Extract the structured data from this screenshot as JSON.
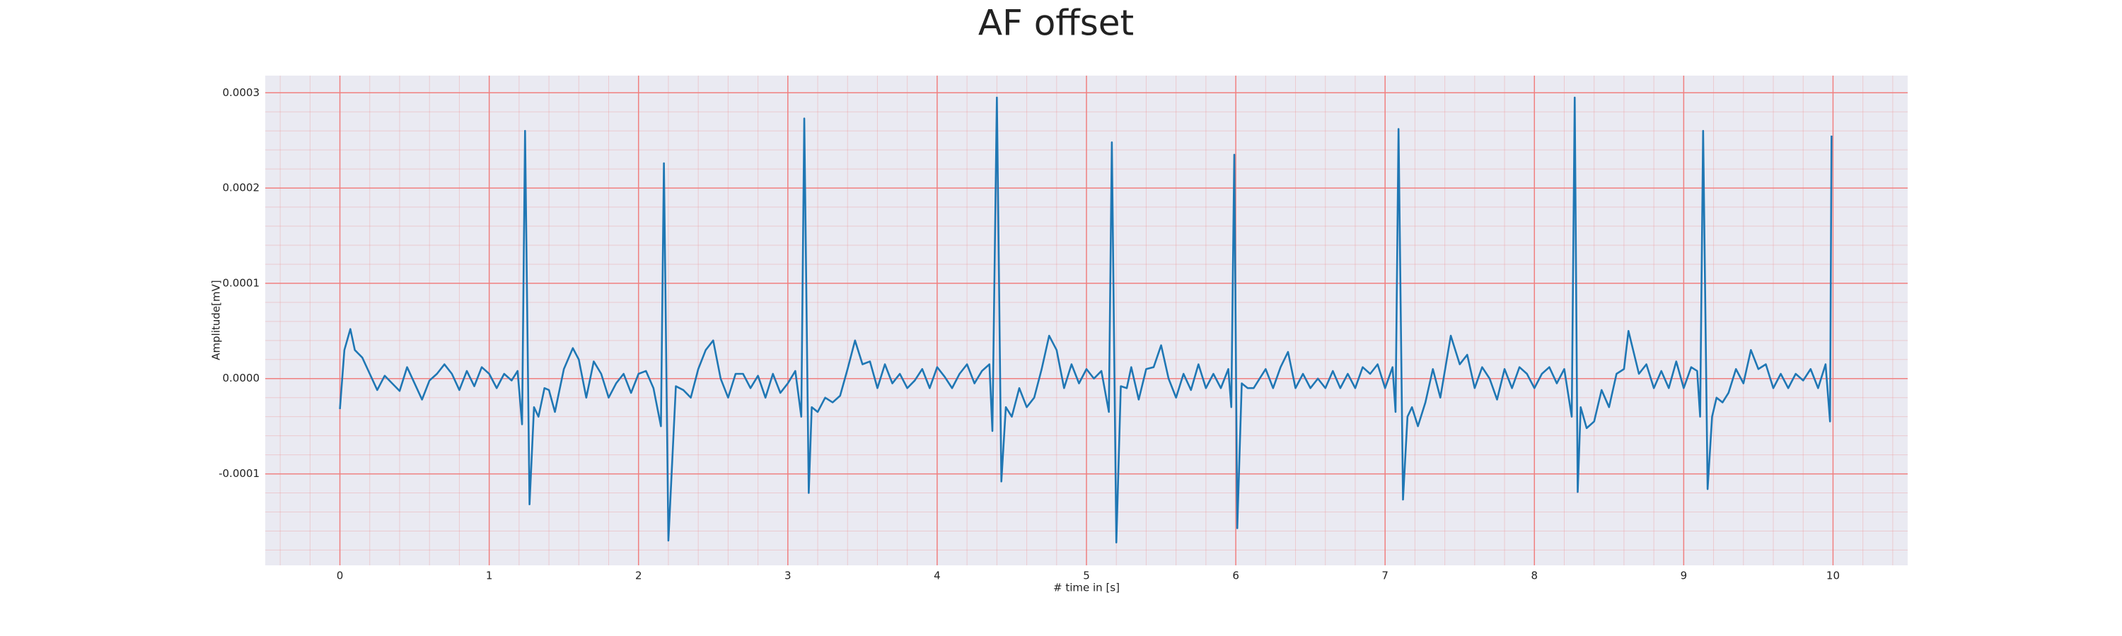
{
  "chart_data": {
    "type": "line",
    "title": "AF offset",
    "xlabel": "# time in [s]",
    "ylabel": "Amplitude[mV]",
    "color": "#1f77b4",
    "background": "#eaeaf2",
    "grid": true,
    "grid_color": "#f08080",
    "minor_grid": true,
    "xlim": [
      -0.5,
      10.5
    ],
    "ylim": [
      -0.000196,
      0.000318
    ],
    "xticks": [
      0,
      1,
      2,
      3,
      4,
      5,
      6,
      7,
      8,
      9,
      10
    ],
    "yticks": [
      -0.0001,
      {
        "value": 0,
        "label": "0.0000"
      },
      0.0001,
      0.0002,
      0.0003
    ],
    "x": [
      0,
      0.03,
      0.07,
      0.1,
      0.15,
      0.2,
      0.25,
      0.3,
      0.35,
      0.4,
      0.45,
      0.5,
      0.55,
      0.6,
      0.65,
      0.7,
      0.75,
      0.8,
      0.85,
      0.9,
      0.95,
      1.0,
      1.05,
      1.1,
      1.15,
      1.19,
      1.22,
      1.24,
      1.27,
      1.3,
      1.33,
      1.37,
      1.4,
      1.44,
      1.5,
      1.56,
      1.6,
      1.65,
      1.7,
      1.75,
      1.8,
      1.85,
      1.9,
      1.95,
      2.0,
      2.05,
      2.1,
      2.15,
      2.17,
      2.2,
      2.25,
      2.3,
      2.35,
      2.4,
      2.45,
      2.5,
      2.55,
      2.6,
      2.65,
      2.7,
      2.75,
      2.8,
      2.85,
      2.9,
      2.95,
      3.0,
      3.05,
      3.09,
      3.11,
      3.14,
      3.16,
      3.2,
      3.25,
      3.3,
      3.35,
      3.4,
      3.45,
      3.5,
      3.55,
      3.6,
      3.65,
      3.7,
      3.75,
      3.8,
      3.85,
      3.9,
      3.95,
      4.0,
      4.05,
      4.1,
      4.15,
      4.2,
      4.25,
      4.3,
      4.35,
      4.37,
      4.4,
      4.43,
      4.46,
      4.5,
      4.55,
      4.6,
      4.65,
      4.7,
      4.75,
      4.8,
      4.85,
      4.9,
      4.95,
      5.0,
      5.05,
      5.1,
      5.15,
      5.17,
      5.2,
      5.23,
      5.27,
      5.3,
      5.35,
      5.4,
      5.45,
      5.5,
      5.55,
      5.6,
      5.65,
      5.7,
      5.75,
      5.8,
      5.85,
      5.9,
      5.95,
      5.97,
      5.99,
      6.01,
      6.04,
      6.08,
      6.12,
      6.16,
      6.2,
      6.25,
      6.3,
      6.35,
      6.4,
      6.45,
      6.5,
      6.55,
      6.6,
      6.65,
      6.7,
      6.75,
      6.8,
      6.85,
      6.9,
      6.95,
      7.0,
      7.05,
      7.07,
      7.09,
      7.12,
      7.15,
      7.18,
      7.22,
      7.27,
      7.32,
      7.37,
      7.44,
      7.5,
      7.55,
      7.6,
      7.65,
      7.7,
      7.75,
      7.8,
      7.85,
      7.9,
      7.95,
      8.0,
      8.05,
      8.1,
      8.15,
      8.2,
      8.25,
      8.27,
      8.29,
      8.31,
      8.35,
      8.4,
      8.45,
      8.5,
      8.55,
      8.6,
      8.63,
      8.7,
      8.75,
      8.8,
      8.85,
      8.9,
      8.95,
      9.0,
      9.05,
      9.09,
      9.11,
      9.13,
      9.16,
      9.19,
      9.22,
      9.26,
      9.3,
      9.35,
      9.4,
      9.45,
      9.5,
      9.55,
      9.6,
      9.65,
      9.7,
      9.75,
      9.8,
      9.85,
      9.9,
      9.95,
      9.98,
      9.99
    ],
    "values": [
      -3.2e-05,
      3e-05,
      5.2e-05,
      3e-05,
      2.2e-05,
      5e-06,
      -1.2e-05,
      3e-06,
      -5e-06,
      -1.3e-05,
      1.2e-05,
      -5e-06,
      -2.2e-05,
      -2e-06,
      5e-06,
      1.5e-05,
      5e-06,
      -1.2e-05,
      8e-06,
      -8e-06,
      1.2e-05,
      5e-06,
      -1e-05,
      5e-06,
      -2e-06,
      8e-06,
      -4.8e-05,
      0.00026,
      -0.000132,
      -3e-05,
      -4e-05,
      -1e-05,
      -1.2e-05,
      -3.5e-05,
      1e-05,
      3.2e-05,
      2e-05,
      -2e-05,
      1.8e-05,
      5e-06,
      -2e-05,
      -5e-06,
      5e-06,
      -1.5e-05,
      5e-06,
      8e-06,
      -1e-05,
      -5e-05,
      0.000226,
      -0.00017,
      -8e-06,
      -1.2e-05,
      -2e-05,
      1e-05,
      3e-05,
      4e-05,
      0.0,
      -2e-05,
      5e-06,
      5e-06,
      -1e-05,
      3e-06,
      -2e-05,
      5e-06,
      -1.5e-05,
      -5e-06,
      8e-06,
      -4e-05,
      0.000273,
      -0.00012,
      -3e-05,
      -3.5e-05,
      -2e-05,
      -2.5e-05,
      -1.8e-05,
      1e-05,
      4e-05,
      1.5e-05,
      1.8e-05,
      -1e-05,
      1.5e-05,
      -5e-06,
      5e-06,
      -1e-05,
      -2e-06,
      1e-05,
      -1e-05,
      1.2e-05,
      2e-06,
      -1e-05,
      5e-06,
      1.5e-05,
      -5e-06,
      8e-06,
      1.5e-05,
      -5.5e-05,
      0.000295,
      -0.000108,
      -3e-05,
      -4e-05,
      -1e-05,
      -3e-05,
      -2e-05,
      1e-05,
      4.5e-05,
      3e-05,
      -1e-05,
      1.5e-05,
      -5e-06,
      1e-05,
      0.0,
      8e-06,
      -3.5e-05,
      0.000248,
      -0.000172,
      -8e-06,
      -1e-05,
      1.2e-05,
      -2.2e-05,
      1e-05,
      1.2e-05,
      3.5e-05,
      0.0,
      -2e-05,
      5e-06,
      -1.2e-05,
      1.5e-05,
      -1e-05,
      5e-06,
      -1e-05,
      1e-05,
      -3e-05,
      0.000235,
      -0.000157,
      -5e-06,
      -1e-05,
      -1e-05,
      0.0,
      1e-05,
      -1e-05,
      1.2e-05,
      2.8e-05,
      -1e-05,
      5e-06,
      -1e-05,
      0.0,
      -1e-05,
      8e-06,
      -1e-05,
      5e-06,
      -1e-05,
      1.2e-05,
      5e-06,
      1.5e-05,
      -1e-05,
      1.2e-05,
      -3.5e-05,
      0.000262,
      -0.000127,
      -4e-05,
      -3e-05,
      -5e-05,
      -2.5e-05,
      1e-05,
      -2e-05,
      4.5e-05,
      1.5e-05,
      2.5e-05,
      -1e-05,
      1.2e-05,
      0.0,
      -2.2e-05,
      1e-05,
      -1e-05,
      1.2e-05,
      5e-06,
      -1e-05,
      5e-06,
      1.2e-05,
      -5e-06,
      1e-05,
      -4e-05,
      0.000295,
      -0.000119,
      -3e-05,
      -5.2e-05,
      -4.5e-05,
      -1.2e-05,
      -3e-05,
      5e-06,
      1e-05,
      5e-05,
      5e-06,
      1.5e-05,
      -1e-05,
      8e-06,
      -1e-05,
      1.8e-05,
      -1e-05,
      1.2e-05,
      8e-06,
      -4e-05,
      0.00026,
      -0.000116,
      -4e-05,
      -2e-05,
      -2.5e-05,
      -1.5e-05,
      1e-05,
      -5e-06,
      3e-05,
      1e-05,
      1.5e-05,
      -1e-05,
      5e-06,
      -1e-05,
      5e-06,
      -2e-06,
      1e-05,
      -1e-05,
      1.5e-05,
      -4.5e-05,
      0.000255
    ]
  }
}
